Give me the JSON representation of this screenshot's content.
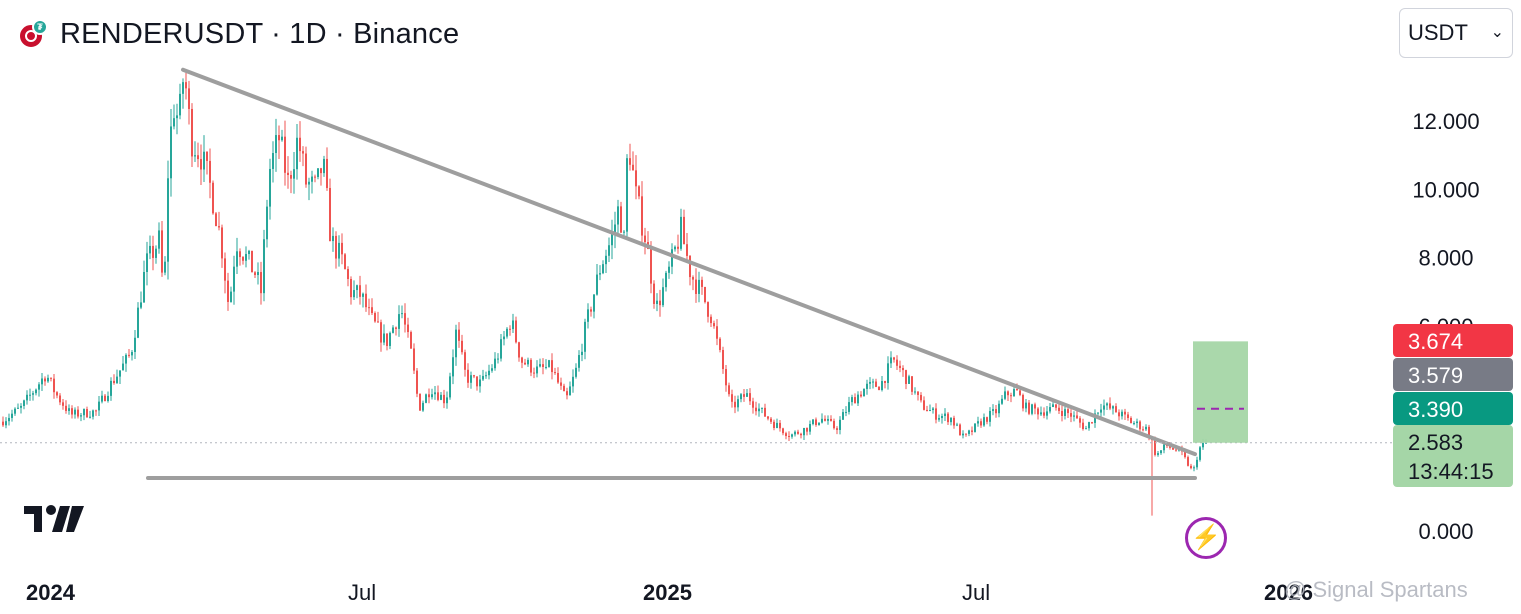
{
  "header": {
    "title": "RENDERUSDT · 1D · Binance",
    "currency_label": "USDT",
    "chevron_icon": "chevron-down-icon",
    "logo_icon": "render-token-logo-icon"
  },
  "chart_data": {
    "type": "candlestick",
    "x_tick_labels": [
      "2024",
      "Jul",
      "2025",
      "Jul",
      "2026"
    ],
    "y_tick_labels": [
      "0.000",
      "6.000",
      "8.000",
      "10.000",
      "12.000"
    ],
    "ylim": [
      0,
      14
    ],
    "grid": false,
    "price_trajectory": [
      [
        0,
        3.2
      ],
      [
        20,
        3.6
      ],
      [
        45,
        4.6
      ],
      [
        55,
        4.0
      ],
      [
        70,
        3.4
      ],
      [
        95,
        3.5
      ],
      [
        110,
        4.3
      ],
      [
        130,
        5.2
      ],
      [
        145,
        7.8
      ],
      [
        158,
        8.5
      ],
      [
        163,
        6.8
      ],
      [
        167,
        10.5
      ],
      [
        172,
        12.5
      ],
      [
        178,
        12.0
      ],
      [
        183,
        13.5
      ],
      [
        190,
        11.5
      ],
      [
        200,
        11.0
      ],
      [
        210,
        10.0
      ],
      [
        220,
        8.5
      ],
      [
        228,
        6.5
      ],
      [
        235,
        8.5
      ],
      [
        245,
        8.0
      ],
      [
        255,
        7.5
      ],
      [
        260,
        7.0
      ],
      [
        268,
        10.5
      ],
      [
        278,
        11.5
      ],
      [
        287,
        10.2
      ],
      [
        297,
        11.5
      ],
      [
        305,
        10.2
      ],
      [
        315,
        10.0
      ],
      [
        322,
        10.8
      ],
      [
        330,
        8.5
      ],
      [
        340,
        8.0
      ],
      [
        350,
        7.0
      ],
      [
        360,
        6.9
      ],
      [
        370,
        6.2
      ],
      [
        385,
        5.5
      ],
      [
        400,
        6.5
      ],
      [
        410,
        5.2
      ],
      [
        418,
        3.6
      ],
      [
        430,
        4.2
      ],
      [
        445,
        3.8
      ],
      [
        455,
        5.8
      ],
      [
        465,
        4.5
      ],
      [
        480,
        4.3
      ],
      [
        495,
        5.0
      ],
      [
        510,
        6.2
      ],
      [
        520,
        5.0
      ],
      [
        535,
        4.7
      ],
      [
        550,
        4.8
      ],
      [
        565,
        3.8
      ],
      [
        575,
        4.7
      ],
      [
        585,
        6.0
      ],
      [
        600,
        7.8
      ],
      [
        610,
        8.5
      ],
      [
        618,
        9.5
      ],
      [
        623,
        8.5
      ],
      [
        627,
        11.5
      ],
      [
        635,
        9.8
      ],
      [
        645,
        8.5
      ],
      [
        655,
        6.5
      ],
      [
        665,
        7.3
      ],
      [
        672,
        8.0
      ],
      [
        680,
        8.8
      ],
      [
        690,
        7.5
      ],
      [
        700,
        7.0
      ],
      [
        710,
        6.3
      ],
      [
        720,
        5.0
      ],
      [
        730,
        3.6
      ],
      [
        745,
        4.0
      ],
      [
        760,
        3.5
      ],
      [
        775,
        3.1
      ],
      [
        790,
        2.8
      ],
      [
        805,
        3.0
      ],
      [
        820,
        3.3
      ],
      [
        835,
        3.0
      ],
      [
        850,
        3.8
      ],
      [
        865,
        4.2
      ],
      [
        880,
        4.3
      ],
      [
        892,
        5.0
      ],
      [
        905,
        4.5
      ],
      [
        920,
        3.7
      ],
      [
        935,
        3.4
      ],
      [
        950,
        3.3
      ],
      [
        963,
        2.7
      ],
      [
        980,
        3.2
      ],
      [
        995,
        3.5
      ],
      [
        1005,
        4.0
      ],
      [
        1015,
        4.1
      ],
      [
        1025,
        3.6
      ],
      [
        1040,
        3.5
      ],
      [
        1055,
        3.6
      ],
      [
        1070,
        3.4
      ],
      [
        1085,
        3.0
      ],
      [
        1100,
        3.7
      ],
      [
        1115,
        3.5
      ],
      [
        1130,
        3.2
      ],
      [
        1145,
        3.0
      ],
      [
        1150,
        2.7
      ],
      [
        1155,
        2.2
      ],
      [
        1165,
        2.5
      ],
      [
        1180,
        2.3
      ],
      [
        1192,
        1.7
      ],
      [
        1198,
        2.4
      ],
      [
        1205,
        2.583
      ]
    ],
    "trend_lines": [
      {
        "name": "descending-resistance",
        "from": [
          183,
          13.5
        ],
        "to": [
          1195,
          2.25
        ],
        "color": "#9e9e9e"
      },
      {
        "name": "horizontal-support",
        "from": [
          148,
          1.55
        ],
        "to": [
          1195,
          1.55
        ],
        "color": "#9e9e9e"
      }
    ],
    "position_box": {
      "x_start": 1193,
      "x_end": 1248,
      "top": 5.55,
      "bottom": 2.583,
      "entry": 3.579,
      "color": "#a5d6a7"
    },
    "price_labels": [
      {
        "value": "3.674",
        "bg": "#f23645",
        "fg": "#ffffff"
      },
      {
        "value": "3.579",
        "bg": "#787b86",
        "fg": "#ffffff"
      },
      {
        "value": "3.390",
        "bg": "#089981",
        "fg": "#ffffff"
      },
      {
        "value": "2.583",
        "bg": "#a5d6a7",
        "fg": "#131722"
      }
    ],
    "current_price": 2.583,
    "countdown": "13:44:15",
    "colors": {
      "up": "#26a69a",
      "down": "#ef5350",
      "text": "#131722",
      "axis_text": "#131722"
    }
  },
  "watermark": "@ Signal Spartans"
}
